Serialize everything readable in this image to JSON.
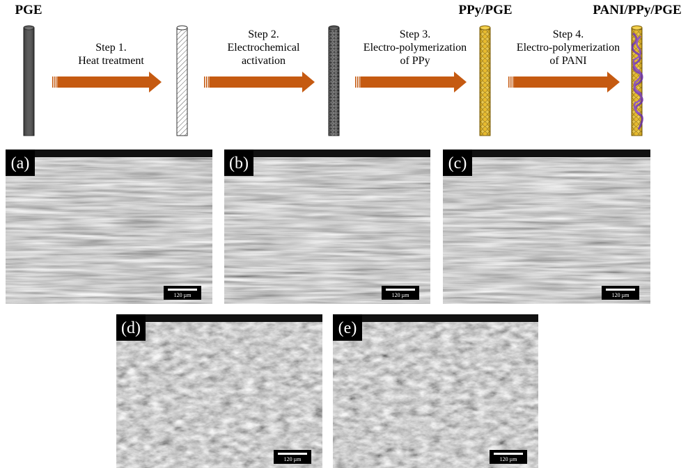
{
  "electrodes": [
    "PGE",
    "PPy/PGE",
    "PANI/PPy/PGE"
  ],
  "steps": [
    {
      "lines": [
        "Step 1.",
        "Heat treatment"
      ]
    },
    {
      "lines": [
        "Step 2.",
        "Electrochemical",
        "activation"
      ]
    },
    {
      "lines": [
        "Step 3.",
        "Electro-polymerization",
        "of PPy"
      ]
    },
    {
      "lines": [
        "Step 4.",
        "Electro-polymerization",
        "of PANI"
      ]
    }
  ],
  "panels": [
    {
      "label": "(a)",
      "scale_bar": "120 µm"
    },
    {
      "label": "(b)",
      "scale_bar": "120 µm"
    },
    {
      "label": "(c)",
      "scale_bar": "120 µm"
    },
    {
      "label": "(d)",
      "scale_bar": "120 µm"
    },
    {
      "label": "(e)",
      "scale_bar": "120 µm"
    }
  ]
}
